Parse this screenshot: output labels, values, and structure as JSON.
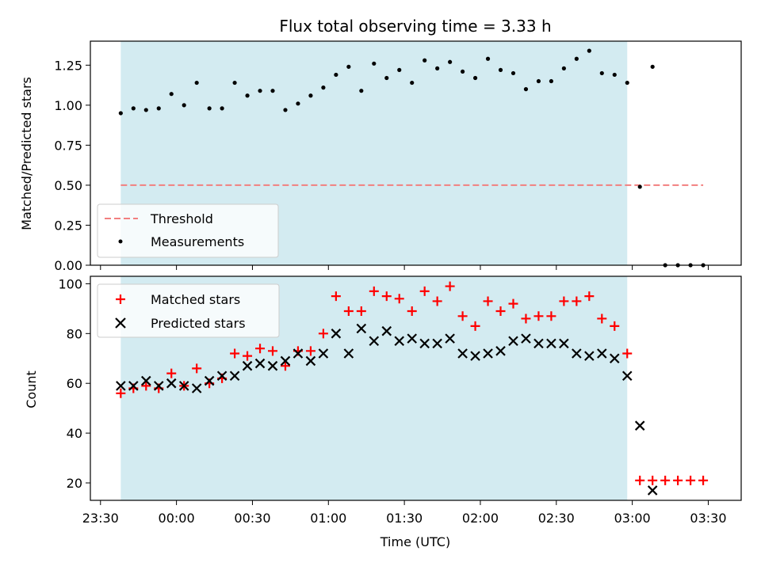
{
  "chart_data": {
    "type": "scatter",
    "title": "Flux total observing time = 3.33 h",
    "xlabel": "Time (UTC)",
    "x_ticks": [
      "23:30",
      "00:00",
      "00:30",
      "01:00",
      "01:30",
      "02:00",
      "02:30",
      "03:00",
      "03:30"
    ],
    "x_tick_minutes": [
      -30,
      0,
      30,
      60,
      90,
      120,
      150,
      180,
      210
    ],
    "xlim_minutes": [
      -34,
      223
    ],
    "shaded_span_minutes": [
      -22,
      178
    ],
    "colors": {
      "shade": "#d3ebf1",
      "threshold": "#f27f7f",
      "matched": "#ff0000",
      "predicted": "#000000",
      "measurement": "#000000"
    },
    "top": {
      "ylabel": "Matched/Predicted stars",
      "ylim": [
        0,
        1.4
      ],
      "yticks": [
        "0.00",
        "0.25",
        "0.50",
        "0.75",
        "1.00",
        "1.25"
      ],
      "ytick_values": [
        0,
        0.25,
        0.5,
        0.75,
        1.0,
        1.25
      ],
      "threshold": {
        "value": 0.5,
        "x_range_minutes": [
          -22,
          208
        ]
      },
      "legend": [
        "Threshold",
        "Measurements"
      ],
      "measurements": [
        {
          "t": -22,
          "ratio": 0.95
        },
        {
          "t": -17,
          "ratio": 0.98
        },
        {
          "t": -12,
          "ratio": 0.97
        },
        {
          "t": -7,
          "ratio": 0.98
        },
        {
          "t": -2,
          "ratio": 1.07
        },
        {
          "t": 3,
          "ratio": 1.0
        },
        {
          "t": 8,
          "ratio": 1.14
        },
        {
          "t": 13,
          "ratio": 0.98
        },
        {
          "t": 18,
          "ratio": 0.98
        },
        {
          "t": 23,
          "ratio": 1.14
        },
        {
          "t": 28,
          "ratio": 1.06
        },
        {
          "t": 33,
          "ratio": 1.09
        },
        {
          "t": 38,
          "ratio": 1.09
        },
        {
          "t": 43,
          "ratio": 0.97
        },
        {
          "t": 48,
          "ratio": 1.01
        },
        {
          "t": 53,
          "ratio": 1.06
        },
        {
          "t": 58,
          "ratio": 1.11
        },
        {
          "t": 63,
          "ratio": 1.19
        },
        {
          "t": 68,
          "ratio": 1.24
        },
        {
          "t": 73,
          "ratio": 1.09
        },
        {
          "t": 78,
          "ratio": 1.26
        },
        {
          "t": 83,
          "ratio": 1.17
        },
        {
          "t": 88,
          "ratio": 1.22
        },
        {
          "t": 93,
          "ratio": 1.14
        },
        {
          "t": 98,
          "ratio": 1.28
        },
        {
          "t": 103,
          "ratio": 1.23
        },
        {
          "t": 108,
          "ratio": 1.27
        },
        {
          "t": 113,
          "ratio": 1.21
        },
        {
          "t": 118,
          "ratio": 1.17
        },
        {
          "t": 123,
          "ratio": 1.29
        },
        {
          "t": 128,
          "ratio": 1.22
        },
        {
          "t": 133,
          "ratio": 1.2
        },
        {
          "t": 138,
          "ratio": 1.1
        },
        {
          "t": 143,
          "ratio": 1.15
        },
        {
          "t": 148,
          "ratio": 1.15
        },
        {
          "t": 153,
          "ratio": 1.23
        },
        {
          "t": 158,
          "ratio": 1.29
        },
        {
          "t": 163,
          "ratio": 1.34
        },
        {
          "t": 168,
          "ratio": 1.2
        },
        {
          "t": 173,
          "ratio": 1.19
        },
        {
          "t": 178,
          "ratio": 1.14
        },
        {
          "t": 183,
          "ratio": 0.49
        },
        {
          "t": 188,
          "ratio": 1.24
        },
        {
          "t": 193,
          "ratio": 0.0
        },
        {
          "t": 198,
          "ratio": 0.0
        },
        {
          "t": 203,
          "ratio": 0.0
        },
        {
          "t": 208,
          "ratio": 0.0
        }
      ]
    },
    "bottom": {
      "ylabel": "Count",
      "ylim": [
        13,
        103
      ],
      "yticks": [
        "20",
        "40",
        "60",
        "80",
        "100"
      ],
      "ytick_values": [
        20,
        40,
        60,
        80,
        100
      ],
      "legend": [
        "Matched stars",
        "Predicted stars"
      ],
      "matched": [
        {
          "t": -22,
          "count": 56
        },
        {
          "t": -17,
          "count": 58
        },
        {
          "t": -12,
          "count": 59
        },
        {
          "t": -7,
          "count": 58
        },
        {
          "t": -2,
          "count": 64
        },
        {
          "t": 3,
          "count": 59
        },
        {
          "t": 8,
          "count": 66
        },
        {
          "t": 13,
          "count": 60
        },
        {
          "t": 18,
          "count": 62
        },
        {
          "t": 23,
          "count": 72
        },
        {
          "t": 28,
          "count": 71
        },
        {
          "t": 33,
          "count": 74
        },
        {
          "t": 38,
          "count": 73
        },
        {
          "t": 43,
          "count": 67
        },
        {
          "t": 48,
          "count": 73
        },
        {
          "t": 53,
          "count": 73
        },
        {
          "t": 58,
          "count": 80
        },
        {
          "t": 63,
          "count": 95
        },
        {
          "t": 68,
          "count": 89
        },
        {
          "t": 73,
          "count": 89
        },
        {
          "t": 78,
          "count": 97
        },
        {
          "t": 83,
          "count": 95
        },
        {
          "t": 88,
          "count": 94
        },
        {
          "t": 93,
          "count": 89
        },
        {
          "t": 98,
          "count": 97
        },
        {
          "t": 103,
          "count": 93
        },
        {
          "t": 108,
          "count": 99
        },
        {
          "t": 113,
          "count": 87
        },
        {
          "t": 118,
          "count": 83
        },
        {
          "t": 123,
          "count": 93
        },
        {
          "t": 128,
          "count": 89
        },
        {
          "t": 133,
          "count": 92
        },
        {
          "t": 138,
          "count": 86
        },
        {
          "t": 143,
          "count": 87
        },
        {
          "t": 148,
          "count": 87
        },
        {
          "t": 153,
          "count": 93
        },
        {
          "t": 158,
          "count": 93
        },
        {
          "t": 163,
          "count": 95
        },
        {
          "t": 168,
          "count": 86
        },
        {
          "t": 173,
          "count": 83
        },
        {
          "t": 178,
          "count": 72
        },
        {
          "t": 183,
          "count": 21
        },
        {
          "t": 188,
          "count": 21
        },
        {
          "t": 193,
          "count": 21
        },
        {
          "t": 198,
          "count": 21
        },
        {
          "t": 203,
          "count": 21
        },
        {
          "t": 208,
          "count": 21
        }
      ],
      "predicted": [
        {
          "t": -22,
          "count": 59
        },
        {
          "t": -17,
          "count": 59
        },
        {
          "t": -12,
          "count": 61
        },
        {
          "t": -7,
          "count": 59
        },
        {
          "t": -2,
          "count": 60
        },
        {
          "t": 3,
          "count": 59
        },
        {
          "t": 8,
          "count": 58
        },
        {
          "t": 13,
          "count": 61
        },
        {
          "t": 18,
          "count": 63
        },
        {
          "t": 23,
          "count": 63
        },
        {
          "t": 28,
          "count": 67
        },
        {
          "t": 33,
          "count": 68
        },
        {
          "t": 38,
          "count": 67
        },
        {
          "t": 43,
          "count": 69
        },
        {
          "t": 48,
          "count": 72
        },
        {
          "t": 53,
          "count": 69
        },
        {
          "t": 58,
          "count": 72
        },
        {
          "t": 63,
          "count": 80
        },
        {
          "t": 68,
          "count": 72
        },
        {
          "t": 73,
          "count": 82
        },
        {
          "t": 78,
          "count": 77
        },
        {
          "t": 83,
          "count": 81
        },
        {
          "t": 88,
          "count": 77
        },
        {
          "t": 93,
          "count": 78
        },
        {
          "t": 98,
          "count": 76
        },
        {
          "t": 103,
          "count": 76
        },
        {
          "t": 108,
          "count": 78
        },
        {
          "t": 113,
          "count": 72
        },
        {
          "t": 118,
          "count": 71
        },
        {
          "t": 123,
          "count": 72
        },
        {
          "t": 128,
          "count": 73
        },
        {
          "t": 133,
          "count": 77
        },
        {
          "t": 138,
          "count": 78
        },
        {
          "t": 143,
          "count": 76
        },
        {
          "t": 148,
          "count": 76
        },
        {
          "t": 153,
          "count": 76
        },
        {
          "t": 158,
          "count": 72
        },
        {
          "t": 163,
          "count": 71
        },
        {
          "t": 168,
          "count": 72
        },
        {
          "t": 173,
          "count": 70
        },
        {
          "t": 178,
          "count": 63
        },
        {
          "t": 183,
          "count": 43
        },
        {
          "t": 188,
          "count": 17
        }
      ]
    }
  }
}
